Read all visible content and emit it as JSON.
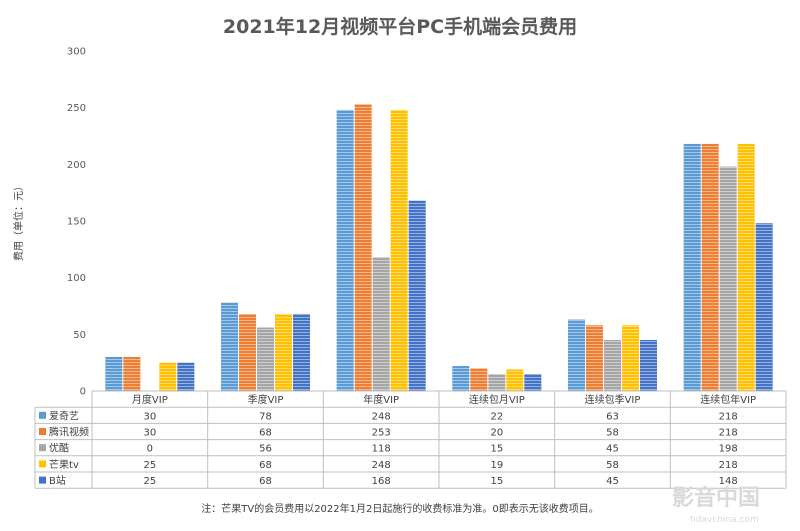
{
  "chart_data": {
    "type": "bar",
    "title": "2021年12月视频平台PC手机端会员费用",
    "ylabel": "费用（单位：元）",
    "xlabel": "",
    "ylim": [
      0,
      300
    ],
    "yticks": [
      0,
      50,
      100,
      150,
      200,
      250,
      300
    ],
    "grid": false,
    "legend": "data-table-left",
    "categories": [
      "月度VIP",
      "季度VIP",
      "年度VIP",
      "连续包月VIP",
      "连续包季VIP",
      "连续包年VIP"
    ],
    "series": [
      {
        "name": "爱奇艺",
        "color": "#5b9bd5",
        "values": [
          30,
          78,
          248,
          22,
          63,
          218
        ]
      },
      {
        "name": "腾讯视频",
        "color": "#ed7d31",
        "values": [
          30,
          68,
          253,
          20,
          58,
          218
        ]
      },
      {
        "name": "优酷",
        "color": "#a5a5a5",
        "values": [
          0,
          56,
          118,
          15,
          45,
          198
        ]
      },
      {
        "name": "芒果tv",
        "color": "#ffc000",
        "values": [
          25,
          68,
          248,
          19,
          58,
          218
        ]
      },
      {
        "name": "B站",
        "color": "#4472c4",
        "values": [
          25,
          68,
          168,
          15,
          45,
          148
        ]
      }
    ],
    "footnote": "注：芒果TV的会员费用以2022年1月2日起施行的收费标准为准。0即表示无该收费项目。"
  },
  "watermark": {
    "main": "影音中国",
    "sub": "hdavchina.com"
  }
}
